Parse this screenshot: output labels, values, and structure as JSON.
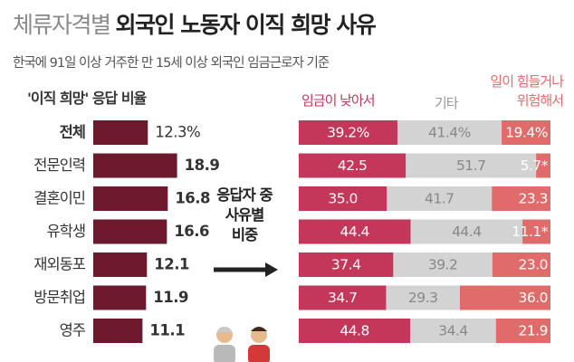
{
  "header": {
    "title_light": "체류자격별",
    "title_bold": "외국인 노동자 이직 희망 사유",
    "subtitle": "한국에 91일 이상 거주한 만 15세 이상 외국인 임금근로자 기준"
  },
  "left_section_label": "'이직 희망' 응답 비율",
  "middle_label": "응답자 중\n사유별\n비중",
  "colors": {
    "left_bar": "#6e1a2e",
    "low_wage": "#c2375a",
    "other": "#d3d3d3",
    "hard_dangerous": "#e06b6b",
    "arrow": "#222222"
  },
  "chart_data": [
    {
      "type": "bar",
      "orientation": "horizontal",
      "title": "'이직 희망' 응답 비율",
      "categories": [
        "전체",
        "전문인력",
        "결혼이민",
        "유학생",
        "재외동포",
        "방문취업",
        "영주"
      ],
      "values": [
        12.3,
        18.9,
        16.8,
        16.6,
        12.1,
        11.9,
        11.1
      ],
      "value_labels": [
        "12.3%",
        "18.9",
        "16.8",
        "16.6",
        "12.1",
        "11.9",
        "11.1"
      ]
    },
    {
      "type": "bar",
      "stacked": true,
      "normalized": true,
      "orientation": "horizontal",
      "categories": [
        "전체",
        "전문인력",
        "결혼이민",
        "유학생",
        "재외동포",
        "방문취업",
        "영주"
      ],
      "series": [
        {
          "name": "임금이 낮아서",
          "values": [
            39.2,
            42.5,
            35.0,
            44.4,
            37.4,
            34.7,
            44.8
          ],
          "labels": [
            "39.2%",
            "42.5",
            "35.0",
            "44.4",
            "37.4",
            "34.7",
            "44.8"
          ]
        },
        {
          "name": "기타",
          "values": [
            41.4,
            51.7,
            41.7,
            44.4,
            39.2,
            29.3,
            34.4
          ],
          "labels": [
            "41.4%",
            "51.7",
            "41.7",
            "44.4",
            "39.2",
            "29.3",
            "34.4"
          ]
        },
        {
          "name": "일이 힘들거나\n위험해서",
          "values": [
            19.4,
            5.7,
            23.3,
            11.1,
            23.0,
            36.0,
            21.9
          ],
          "labels": [
            "19.4%",
            "5.7*",
            "23.3",
            "11.1*",
            "23.0",
            "36.0",
            "21.9"
          ]
        }
      ]
    }
  ]
}
